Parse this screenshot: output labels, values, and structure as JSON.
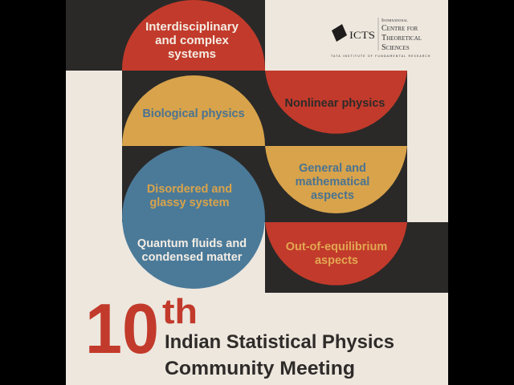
{
  "colors": {
    "red": "#c23a2b",
    "yellow": "#d8a34b",
    "blue": "#4b7a99",
    "dark": "#2a2928",
    "paper": "#ede7de",
    "text_dark": "#2e2b29",
    "text_blue": "#4a7391"
  },
  "logo": {
    "acronym": "ICTS",
    "line1": "International",
    "line2": "Centre for",
    "line3": "Theoretical",
    "line4": "Sciences",
    "tagline": "TATA INSTITUTE OF FUNDAMENTAL RESEARCH"
  },
  "topics": {
    "interdisciplinary": [
      "Interdisciplinary",
      "and complex",
      "systems"
    ],
    "biological": [
      "Biological physics"
    ],
    "nonlinear": [
      "Nonlinear physics"
    ],
    "disordered": [
      "Disordered and",
      "glassy system"
    ],
    "general": [
      "General and",
      "mathematical",
      "aspects"
    ],
    "quantum": [
      "Quantum fluids and",
      "condensed matter"
    ],
    "out_of_equilibrium": [
      "Out-of-equilibrium",
      "aspects"
    ]
  },
  "title": {
    "number": "10",
    "suffix": "th",
    "line1": "Indian Statistical Physics",
    "line2": "Community Meeting"
  }
}
